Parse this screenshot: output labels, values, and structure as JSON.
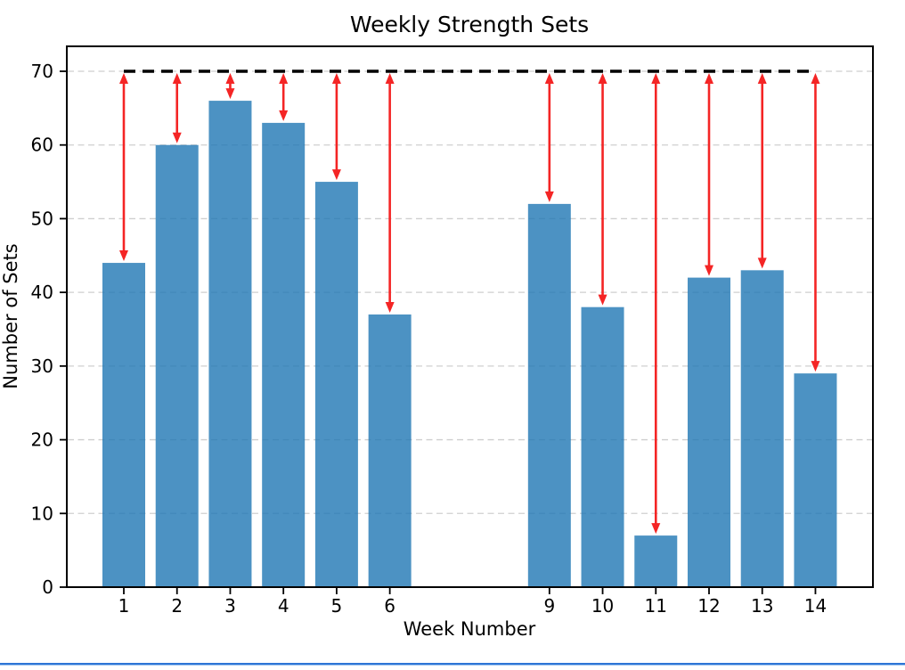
{
  "chart_data": {
    "type": "bar",
    "title": "Weekly Strength Sets",
    "xlabel": "Week Number",
    "ylabel": "Number of Sets",
    "categories": [
      1,
      2,
      3,
      4,
      5,
      6,
      9,
      10,
      11,
      12,
      13,
      14
    ],
    "values": [
      44,
      60,
      66,
      63,
      55,
      37,
      52,
      38,
      7,
      42,
      43,
      29
    ],
    "yticks": [
      0,
      10,
      20,
      30,
      40,
      50,
      60,
      70
    ],
    "ylim": [
      0,
      73.5
    ],
    "grid": true,
    "grid_style": "dashed",
    "grid_color": "#cfcfcf",
    "bar_color": "rgba(31,119,180,0.8)",
    "target_line": {
      "value": 70,
      "style": "dashed",
      "color": "#000000",
      "spans": "from first to last bar center"
    },
    "arrows": {
      "description": "double-headed vertical red arrows from target line down to each bar top",
      "color": "#f42525",
      "double_headed": true
    },
    "legend": "none"
  },
  "screen": {
    "bottom_accent_color": "#2e75d6",
    "bottom_accent_soft_color": "#9dc3f0"
  }
}
